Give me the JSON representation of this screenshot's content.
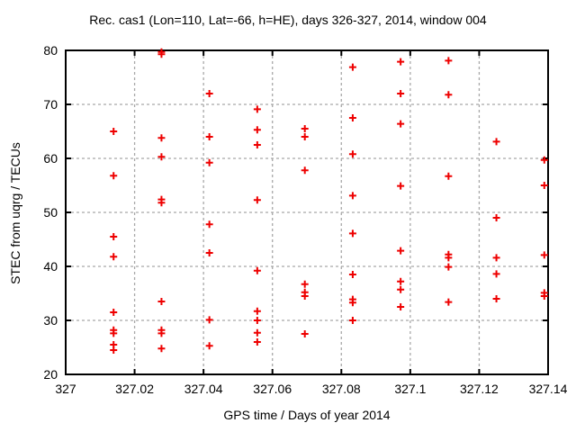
{
  "title": "Rec. cas1 (Lon=110, Lat=-66, h=HE), days 326-327, 2014, window 004",
  "chart_data": {
    "type": "scatter",
    "title": "Rec. cas1 (Lon=110, Lat=-66, h=HE), days 326-327, 2014, window 004",
    "xlabel": "GPS time / Days of year 2014",
    "ylabel": "STEC from uqrg / TECUs",
    "xlim": [
      327,
      327.14
    ],
    "ylim": [
      20,
      80
    ],
    "x_tick_values": [
      327,
      327.02,
      327.04,
      327.06,
      327.08,
      327.1,
      327.12,
      327.14
    ],
    "x_tick_labels": [
      "327",
      "327.02",
      "327.04",
      "327.06",
      "327.08",
      "327.1",
      "327.12",
      "327.14"
    ],
    "y_tick_values": [
      20,
      30,
      40,
      50,
      60,
      70,
      80
    ],
    "y_tick_labels": [
      "20",
      "30",
      "40",
      "50",
      "60",
      "70",
      "80"
    ],
    "grid": true,
    "legend_position": "none",
    "marker": {
      "shape": "plus",
      "color": "#ee0000",
      "size": 9,
      "stroke_width": 2
    },
    "axis_color": "#000000",
    "grid_color": "#a8a8a8",
    "background_color": "#ffffff",
    "points": [
      [
        327.0139,
        65.0
      ],
      [
        327.0139,
        56.8
      ],
      [
        327.0139,
        45.5
      ],
      [
        327.0139,
        41.8
      ],
      [
        327.0139,
        31.5
      ],
      [
        327.0139,
        28.2
      ],
      [
        327.0139,
        27.6
      ],
      [
        327.0139,
        25.5
      ],
      [
        327.0139,
        24.5
      ],
      [
        327.0278,
        79.7
      ],
      [
        327.0278,
        79.3
      ],
      [
        327.0278,
        63.8
      ],
      [
        327.0278,
        60.3
      ],
      [
        327.0278,
        52.4
      ],
      [
        327.0278,
        51.8
      ],
      [
        327.0278,
        33.5
      ],
      [
        327.0278,
        28.2
      ],
      [
        327.0278,
        27.6
      ],
      [
        327.0278,
        24.8
      ],
      [
        327.0417,
        72.0
      ],
      [
        327.0417,
        64.0
      ],
      [
        327.0417,
        59.2
      ],
      [
        327.0417,
        47.8
      ],
      [
        327.0417,
        42.5
      ],
      [
        327.0417,
        30.1
      ],
      [
        327.0417,
        25.3
      ],
      [
        327.0556,
        69.1
      ],
      [
        327.0556,
        65.3
      ],
      [
        327.0556,
        62.5
      ],
      [
        327.0556,
        52.3
      ],
      [
        327.0556,
        39.2
      ],
      [
        327.0556,
        31.7
      ],
      [
        327.0556,
        30.0
      ],
      [
        327.0556,
        27.7
      ],
      [
        327.0556,
        26.0
      ],
      [
        327.0694,
        65.5
      ],
      [
        327.0694,
        64.0
      ],
      [
        327.0694,
        57.8
      ],
      [
        327.0694,
        36.7
      ],
      [
        327.0694,
        35.2
      ],
      [
        327.0694,
        34.5
      ],
      [
        327.0694,
        27.5
      ],
      [
        327.0833,
        76.9
      ],
      [
        327.0833,
        67.5
      ],
      [
        327.0833,
        60.8
      ],
      [
        327.0833,
        53.1
      ],
      [
        327.0833,
        46.1
      ],
      [
        327.0833,
        38.5
      ],
      [
        327.0833,
        33.9
      ],
      [
        327.0833,
        33.3
      ],
      [
        327.0833,
        30.0
      ],
      [
        327.0972,
        77.9
      ],
      [
        327.0972,
        72.0
      ],
      [
        327.0972,
        66.4
      ],
      [
        327.0972,
        54.9
      ],
      [
        327.0972,
        42.9
      ],
      [
        327.0972,
        37.2
      ],
      [
        327.0972,
        35.7
      ],
      [
        327.0972,
        32.5
      ],
      [
        327.1111,
        78.1
      ],
      [
        327.1111,
        71.8
      ],
      [
        327.1111,
        56.7
      ],
      [
        327.1111,
        42.2
      ],
      [
        327.1111,
        41.6
      ],
      [
        327.1111,
        39.9
      ],
      [
        327.1111,
        33.4
      ],
      [
        327.125,
        63.1
      ],
      [
        327.125,
        49.0
      ],
      [
        327.125,
        41.6
      ],
      [
        327.125,
        38.6
      ],
      [
        327.125,
        34.0
      ],
      [
        327.1389,
        59.7
      ],
      [
        327.1389,
        55.0
      ],
      [
        327.1389,
        42.1
      ],
      [
        327.1389,
        35.1
      ],
      [
        327.1389,
        34.5
      ]
    ]
  }
}
